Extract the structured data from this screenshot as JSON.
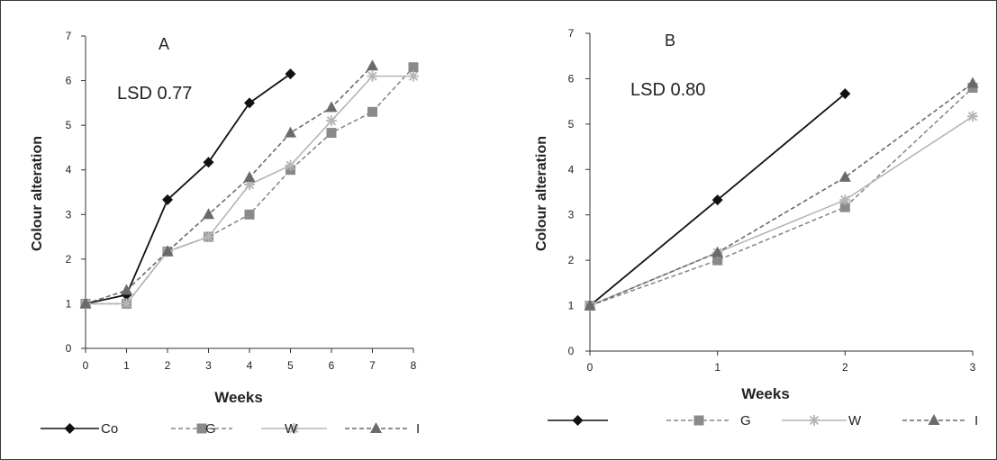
{
  "chart_data": [
    {
      "type": "line",
      "panel_label": "A",
      "annotation": "LSD 0.77",
      "xlabel": "Weeks",
      "ylabel": "Colour alteration",
      "xlim": [
        0,
        8
      ],
      "ylim": [
        0,
        7
      ],
      "x_ticks": [
        0,
        1,
        2,
        3,
        4,
        5,
        6,
        7,
        8
      ],
      "y_ticks": [
        0,
        1,
        2,
        3,
        4,
        5,
        6,
        7
      ],
      "grid": false,
      "legend_position": "bottom",
      "series": [
        {
          "name": "Co",
          "marker": "diamond",
          "dash": "solid",
          "color": "#111111",
          "x": [
            0,
            1,
            2,
            3,
            4,
            5
          ],
          "y": [
            1.0,
            1.2,
            3.33,
            4.17,
            5.5,
            6.15
          ]
        },
        {
          "name": "G",
          "marker": "square",
          "dash": "dashed",
          "color": "#8a8a8a",
          "x": [
            0,
            1,
            2,
            3,
            4,
            5,
            6,
            7,
            8
          ],
          "y": [
            1.0,
            1.0,
            2.17,
            2.5,
            3.0,
            4.0,
            4.83,
            5.3,
            6.3
          ]
        },
        {
          "name": "W",
          "marker": "star",
          "dash": "solid",
          "color": "#b5b5b5",
          "x": [
            0,
            1,
            2,
            3,
            4,
            5,
            6,
            7,
            8
          ],
          "y": [
            1.0,
            1.0,
            2.17,
            2.5,
            3.67,
            4.1,
            5.1,
            6.1,
            6.1
          ]
        },
        {
          "name": "I",
          "marker": "triangle",
          "dash": "dashed",
          "color": "#6a6a6a",
          "x": [
            0,
            1,
            2,
            3,
            4,
            5,
            6,
            7
          ],
          "y": [
            1.0,
            1.3,
            2.17,
            3.0,
            3.83,
            4.83,
            5.4,
            6.33
          ]
        }
      ]
    },
    {
      "type": "line",
      "panel_label": "B",
      "annotation": "LSD 0.80",
      "xlabel": "Weeks",
      "ylabel": "Colour alteration",
      "xlim": [
        0,
        3
      ],
      "ylim": [
        0,
        7
      ],
      "x_ticks": [
        0,
        1,
        2,
        3
      ],
      "y_ticks": [
        0,
        1,
        2,
        3,
        4,
        5,
        6,
        7
      ],
      "grid": false,
      "legend_position": "bottom",
      "series": [
        {
          "name": "",
          "marker": "diamond",
          "dash": "solid",
          "color": "#111111",
          "x": [
            0,
            1,
            2
          ],
          "y": [
            1.0,
            3.33,
            5.67
          ]
        },
        {
          "name": "G",
          "marker": "square",
          "dash": "dashed",
          "color": "#8a8a8a",
          "x": [
            0,
            1,
            2,
            3
          ],
          "y": [
            1.0,
            2.0,
            3.17,
            5.8
          ]
        },
        {
          "name": "W",
          "marker": "star",
          "dash": "solid",
          "color": "#b5b5b5",
          "x": [
            0,
            1,
            2,
            3
          ],
          "y": [
            1.0,
            2.17,
            3.33,
            5.17
          ]
        },
        {
          "name": "I",
          "marker": "triangle",
          "dash": "dashed",
          "color": "#6a6a6a",
          "x": [
            0,
            1,
            2,
            3
          ],
          "y": [
            1.0,
            2.17,
            3.83,
            5.9
          ]
        }
      ]
    }
  ]
}
